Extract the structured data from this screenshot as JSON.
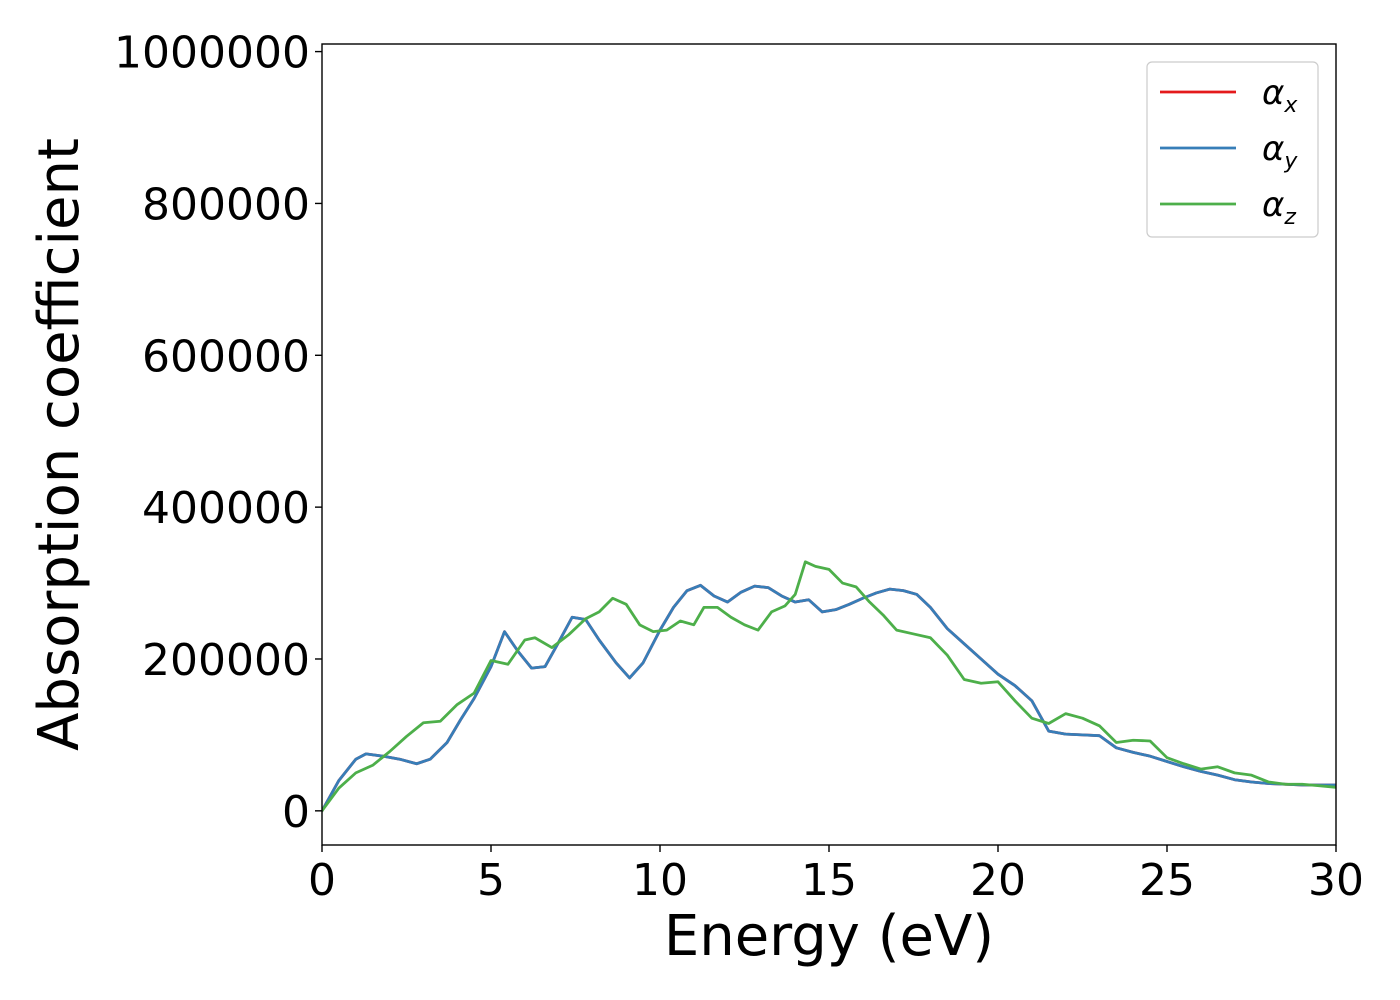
{
  "chart_data": {
    "type": "line",
    "xlabel": "Energy (eV)",
    "ylabel": "Absorption coefficient",
    "xlim": [
      0,
      30
    ],
    "ylim": [
      -45000,
      1010000
    ],
    "xticks": [
      0,
      5,
      10,
      15,
      20,
      25,
      30
    ],
    "xtick_labels": [
      "0",
      "5",
      "10",
      "15",
      "20",
      "25",
      "30"
    ],
    "yticks": [
      0,
      200000,
      400000,
      600000,
      800000,
      1000000
    ],
    "ytick_labels": [
      "0",
      "200000",
      "400000",
      "600000",
      "800000",
      "1000000"
    ],
    "grid": false,
    "legend_position": "top-right",
    "series": [
      {
        "name": "αx",
        "symbol": "α",
        "subscript": "x",
        "color": "#e41a1c",
        "x": [
          0,
          0.5,
          1,
          1.3,
          1.8,
          2.3,
          2.8,
          3.2,
          3.7,
          4.1,
          4.5,
          5,
          5.4,
          5.8,
          6.2,
          6.6,
          7,
          7.4,
          7.8,
          8.2,
          8.7,
          9.1,
          9.5,
          10,
          10.4,
          10.8,
          11.2,
          11.6,
          12,
          12.4,
          12.8,
          13.2,
          13.6,
          14,
          14.4,
          14.8,
          15.2,
          15.6,
          16,
          16.4,
          16.8,
          17.2,
          17.6,
          18,
          18.5,
          19,
          19.5,
          20,
          20.5,
          21,
          21.5,
          22,
          22.5,
          23,
          23.5,
          24,
          24.5,
          25,
          25.5,
          26,
          26.5,
          27,
          27.5,
          28,
          28.5,
          29,
          29.5,
          30
        ],
        "y": [
          0,
          40000,
          68000,
          75000,
          72000,
          68000,
          62000,
          68000,
          90000,
          120000,
          148000,
          190000,
          236000,
          210000,
          188000,
          190000,
          222000,
          255000,
          252000,
          225000,
          195000,
          175000,
          195000,
          238000,
          268000,
          290000,
          297000,
          283000,
          275000,
          288000,
          296000,
          294000,
          283000,
          275000,
          278000,
          262000,
          265000,
          272000,
          280000,
          287000,
          292000,
          290000,
          285000,
          268000,
          240000,
          220000,
          200000,
          180000,
          165000,
          145000,
          105000,
          101000,
          100000,
          99000,
          83000,
          77000,
          72000,
          65000,
          58000,
          52000,
          47000,
          41000,
          38000,
          36000,
          35000,
          34000,
          34000,
          34000
        ]
      },
      {
        "name": "αy",
        "symbol": "α",
        "subscript": "y",
        "color": "#377eb8",
        "x": [
          0,
          0.5,
          1,
          1.3,
          1.8,
          2.3,
          2.8,
          3.2,
          3.7,
          4.1,
          4.5,
          5,
          5.4,
          5.8,
          6.2,
          6.6,
          7,
          7.4,
          7.8,
          8.2,
          8.7,
          9.1,
          9.5,
          10,
          10.4,
          10.8,
          11.2,
          11.6,
          12,
          12.4,
          12.8,
          13.2,
          13.6,
          14,
          14.4,
          14.8,
          15.2,
          15.6,
          16,
          16.4,
          16.8,
          17.2,
          17.6,
          18,
          18.5,
          19,
          19.5,
          20,
          20.5,
          21,
          21.5,
          22,
          22.5,
          23,
          23.5,
          24,
          24.5,
          25,
          25.5,
          26,
          26.5,
          27,
          27.5,
          28,
          28.5,
          29,
          29.5,
          30
        ],
        "y": [
          0,
          40000,
          68000,
          75000,
          72000,
          68000,
          62000,
          68000,
          90000,
          120000,
          148000,
          190000,
          236000,
          210000,
          188000,
          190000,
          222000,
          255000,
          252000,
          225000,
          195000,
          175000,
          195000,
          238000,
          268000,
          290000,
          297000,
          283000,
          275000,
          288000,
          296000,
          294000,
          283000,
          275000,
          278000,
          262000,
          265000,
          272000,
          280000,
          287000,
          292000,
          290000,
          285000,
          268000,
          240000,
          220000,
          200000,
          180000,
          165000,
          145000,
          105000,
          101000,
          100000,
          99000,
          83000,
          77000,
          72000,
          65000,
          58000,
          52000,
          47000,
          41000,
          38000,
          36000,
          35000,
          34000,
          34000,
          34000
        ]
      },
      {
        "name": "αz",
        "symbol": "α",
        "subscript": "z",
        "color": "#4daf4a",
        "x": [
          0,
          0.5,
          1,
          1.5,
          2,
          2.5,
          3,
          3.5,
          4,
          4.5,
          5,
          5.5,
          6,
          6.3,
          6.8,
          7.3,
          7.8,
          8.2,
          8.6,
          9,
          9.4,
          9.8,
          10.2,
          10.6,
          11,
          11.3,
          11.7,
          12.1,
          12.5,
          12.9,
          13.3,
          13.7,
          14,
          14.3,
          14.6,
          15,
          15.4,
          15.8,
          16.2,
          16.6,
          17,
          17.5,
          18,
          18.5,
          19,
          19.5,
          20,
          20.5,
          21,
          21.5,
          22,
          22.5,
          23,
          23.5,
          24,
          24.5,
          25,
          25.5,
          26,
          26.5,
          27,
          27.5,
          28,
          28.5,
          29,
          29.5,
          30
        ],
        "y": [
          0,
          30000,
          50000,
          60000,
          78000,
          98000,
          116000,
          118000,
          140000,
          155000,
          198000,
          193000,
          225000,
          228000,
          215000,
          232000,
          253000,
          262000,
          280000,
          272000,
          245000,
          236000,
          238000,
          250000,
          245000,
          268000,
          268000,
          255000,
          245000,
          238000,
          262000,
          270000,
          285000,
          328000,
          322000,
          318000,
          300000,
          295000,
          275000,
          258000,
          238000,
          233000,
          228000,
          205000,
          173000,
          168000,
          170000,
          145000,
          122000,
          115000,
          128000,
          122000,
          112000,
          90000,
          93000,
          92000,
          70000,
          62000,
          55000,
          58000,
          50000,
          47000,
          38000,
          35000,
          35000,
          33000,
          31000
        ]
      }
    ]
  }
}
